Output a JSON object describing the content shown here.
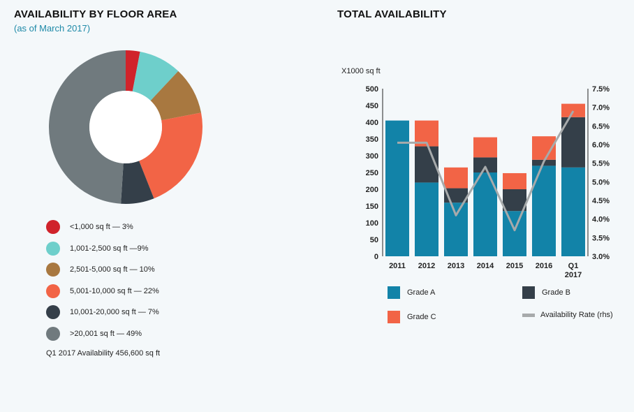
{
  "left": {
    "title": "AVAILABILITY BY FLOOR AREA",
    "subtitle": "(as of March 2017)",
    "note": "Q1 2017 Availability 456,600 sq ft"
  },
  "right": {
    "title": "TOTAL AVAILABILITY"
  },
  "chart_data": [
    {
      "type": "pie",
      "donut": true,
      "title": "AVAILABILITY BY FLOOR AREA",
      "subtitle": "(as of March 2017)",
      "slices": [
        {
          "label": "<1,000 sq ft — 3%",
          "value": 3,
          "color": "#d0232b"
        },
        {
          "label": "1,001-2,500 sq ft —9%",
          "value": 9,
          "color": "#6ecfcb"
        },
        {
          "label": "2,501-5,000 sq ft — 10%",
          "value": 10,
          "color": "#a87840"
        },
        {
          "label": "5,001-10,000 sq ft — 22%",
          "value": 22,
          "color": "#f26446"
        },
        {
          "label": "10,001-20,000 sq ft — 7%",
          "value": 7,
          "color": "#343f49"
        },
        {
          "label": ">20,001 sq ft — 49%",
          "value": 49,
          "color": "#707a7e"
        }
      ]
    },
    {
      "type": "bar",
      "stacked": true,
      "title": "TOTAL AVAILABILITY",
      "ylabel": "X1000 sq ft",
      "categories": [
        "2011",
        "2012",
        "2013",
        "2014",
        "2015",
        "2016",
        "Q1 2017"
      ],
      "ylim": [
        0,
        500
      ],
      "yticks": [
        "0",
        "50",
        "100",
        "150",
        "200",
        "250",
        "300",
        "350",
        "400",
        "450",
        "500"
      ],
      "y2lim": [
        3.0,
        7.5
      ],
      "y2ticks": [
        "3.0%",
        "3.5%",
        "4.0%",
        "4.5%",
        "5.0%",
        "5.5%",
        "6.0%",
        "6.5%",
        "7.0%",
        "7.5%"
      ],
      "series": [
        {
          "name": "Grade A",
          "color": "#1283a8",
          "values": [
            405,
            220,
            160,
            250,
            135,
            270,
            265
          ]
        },
        {
          "name": "Grade B",
          "color": "#343f49",
          "values": [
            0,
            108,
            43,
            45,
            65,
            18,
            150
          ]
        },
        {
          "name": "Grade C",
          "color": "#f26446",
          "values": [
            0,
            77,
            62,
            60,
            48,
            70,
            40
          ]
        }
      ],
      "line": {
        "name": "Availability Rate (rhs)",
        "color": "#a7aaab",
        "values": [
          6.05,
          6.05,
          4.1,
          5.4,
          3.7,
          5.55,
          6.9
        ]
      }
    }
  ]
}
